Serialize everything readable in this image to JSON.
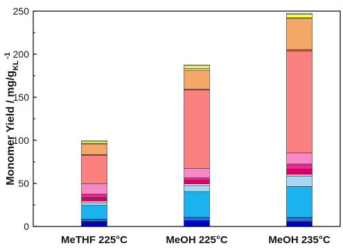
{
  "chart_data": {
    "type": "bar",
    "stacked": true,
    "categories": [
      "MeTHF 225°C",
      "MeOH 225°C",
      "MeOH 235°C"
    ],
    "ylabel": "Monomer Yield / mg/g",
    "ylabel_sub": "KL",
    "ylabel_sup": "-1",
    "ylim": [
      0,
      250
    ],
    "yticks": [
      "0",
      "50",
      "100",
      "150",
      "200",
      "250"
    ],
    "grid": false,
    "legend": "none",
    "series": [
      {
        "color": "#0000cc",
        "values": [
          6,
          7,
          6
        ]
      },
      {
        "color": "#2e6fe0",
        "values": [
          2,
          3,
          4
        ]
      },
      {
        "color": "#c8c8f0",
        "values": [
          0.5,
          0.5,
          0.5
        ]
      },
      {
        "color": "#1ab2ef",
        "values": [
          16,
          30,
          36
        ]
      },
      {
        "color": "#a6d8f5",
        "values": [
          3,
          7,
          12
        ]
      },
      {
        "color": "#e0e8f8",
        "values": [
          2,
          2,
          2
        ]
      },
      {
        "color": "#d9006b",
        "values": [
          4,
          4,
          6
        ]
      },
      {
        "color": "#e8288a",
        "values": [
          4,
          3,
          6
        ]
      },
      {
        "color": "#f787c9",
        "values": [
          12,
          11,
          13
        ]
      },
      {
        "color": "#fb8080",
        "values": [
          33,
          91,
          118
        ]
      },
      {
        "color": "#c06060",
        "values": [
          1,
          1,
          2
        ]
      },
      {
        "color": "#f3a86a",
        "values": [
          12,
          22,
          36
        ]
      },
      {
        "color": "#fde68a",
        "values": [
          1,
          2,
          1
        ]
      },
      {
        "color": "#ffff33",
        "values": [
          2,
          3,
          4
        ]
      },
      {
        "color": "#ffffaa",
        "values": [
          1,
          1,
          1
        ]
      }
    ]
  }
}
